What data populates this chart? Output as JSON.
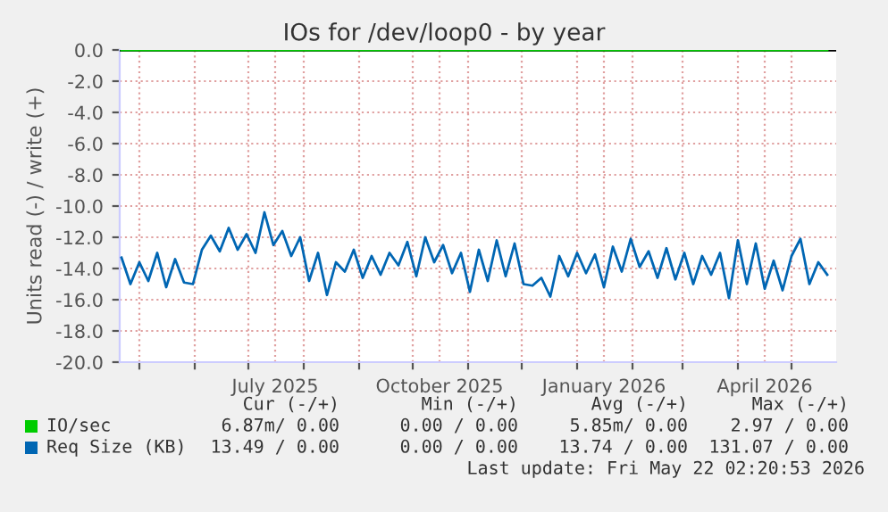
{
  "chart_data": {
    "type": "line",
    "title": "IOs for /dev/loop0 - by year",
    "ylabel": "Units read (-) / write (+)",
    "xlim": [
      "2025-04-20",
      "2026-05-26"
    ],
    "ylim": [
      -20,
      0
    ],
    "yticks": [
      {
        "value": -20,
        "label": "-20.0"
      },
      {
        "value": -18,
        "label": "-18.0"
      },
      {
        "value": -16,
        "label": "-16.0"
      },
      {
        "value": -14,
        "label": "-14.0"
      },
      {
        "value": -12,
        "label": "-12.0"
      },
      {
        "value": -10,
        "label": "-10.0"
      },
      {
        "value": -8,
        "label": "-8.0"
      },
      {
        "value": -6,
        "label": "-6.0"
      },
      {
        "value": -4,
        "label": "-4.0"
      },
      {
        "value": -2,
        "label": "-2.0"
      },
      {
        "value": 0,
        "label": "0.0"
      }
    ],
    "xticks": [
      {
        "value": "2025-05-01",
        "label": null
      },
      {
        "value": "2025-06-01",
        "label": null
      },
      {
        "value": "2025-07-01",
        "label": null
      },
      {
        "value": "2025-07-16",
        "label": "July 2025"
      },
      {
        "value": "2025-08-01",
        "label": null
      },
      {
        "value": "2025-09-01",
        "label": null
      },
      {
        "value": "2025-10-01",
        "label": null
      },
      {
        "value": "2025-10-16",
        "label": "October 2025"
      },
      {
        "value": "2025-11-01",
        "label": null
      },
      {
        "value": "2025-12-01",
        "label": null
      },
      {
        "value": "2026-01-01",
        "label": null
      },
      {
        "value": "2026-01-16",
        "label": "January 2026"
      },
      {
        "value": "2026-02-01",
        "label": null
      },
      {
        "value": "2026-03-01",
        "label": null
      },
      {
        "value": "2026-04-01",
        "label": null
      },
      {
        "value": "2026-04-16",
        "label": "April 2026"
      },
      {
        "value": "2026-05-01",
        "label": null
      }
    ],
    "grid": true,
    "legend": "bottom",
    "ref_lines": [
      {
        "axis": "y",
        "value": 0,
        "color": "#000000"
      }
    ],
    "series": [
      {
        "name": "IO/sec",
        "color": "#00cc00",
        "x": [
          "2025-04-21",
          "2026-05-21"
        ],
        "values": [
          0,
          0
        ]
      },
      {
        "name": "Req Size (KB)",
        "color": "#0066b3",
        "x": [
          "2025-04-21",
          "2025-04-26",
          "2025-05-01",
          "2025-05-06",
          "2025-05-11",
          "2025-05-16",
          "2025-05-21",
          "2025-05-26",
          "2025-05-31",
          "2025-06-05",
          "2025-06-10",
          "2025-06-15",
          "2025-06-20",
          "2025-06-25",
          "2025-06-30",
          "2025-07-05",
          "2025-07-10",
          "2025-07-15",
          "2025-07-20",
          "2025-07-25",
          "2025-07-30",
          "2025-08-04",
          "2025-08-09",
          "2025-08-14",
          "2025-08-19",
          "2025-08-24",
          "2025-08-29",
          "2025-09-03",
          "2025-09-08",
          "2025-09-13",
          "2025-09-18",
          "2025-09-23",
          "2025-09-28",
          "2025-10-03",
          "2025-10-08",
          "2025-10-13",
          "2025-10-18",
          "2025-10-23",
          "2025-10-28",
          "2025-11-02",
          "2025-11-07",
          "2025-11-12",
          "2025-11-17",
          "2025-11-22",
          "2025-11-27",
          "2025-12-02",
          "2025-12-07",
          "2025-12-12",
          "2025-12-17",
          "2025-12-22",
          "2025-12-27",
          "2026-01-01",
          "2026-01-06",
          "2026-01-11",
          "2026-01-16",
          "2026-01-21",
          "2026-01-26",
          "2026-01-31",
          "2026-02-05",
          "2026-02-10",
          "2026-02-15",
          "2026-02-20",
          "2026-02-25",
          "2026-03-02",
          "2026-03-07",
          "2026-03-12",
          "2026-03-17",
          "2026-03-22",
          "2026-03-27",
          "2026-04-01",
          "2026-04-06",
          "2026-04-11",
          "2026-04-16",
          "2026-04-21",
          "2026-04-26",
          "2026-05-01",
          "2026-05-06",
          "2026-05-11",
          "2026-05-16",
          "2026-05-21"
        ],
        "values": [
          -13.3,
          -15.0,
          -13.6,
          -14.8,
          -13.0,
          -15.2,
          -13.4,
          -14.9,
          -15.0,
          -12.8,
          -11.9,
          -12.9,
          -11.4,
          -12.8,
          -11.8,
          -13.0,
          -10.4,
          -12.5,
          -11.6,
          -13.2,
          -12.0,
          -14.8,
          -13.0,
          -15.7,
          -13.6,
          -14.2,
          -12.8,
          -14.6,
          -13.2,
          -14.4,
          -13.0,
          -13.8,
          -12.3,
          -14.5,
          -12.0,
          -13.6,
          -12.5,
          -14.3,
          -13.0,
          -15.5,
          -12.8,
          -14.8,
          -12.2,
          -14.5,
          -12.4,
          -15.0,
          -15.1,
          -14.6,
          -15.8,
          -13.2,
          -14.5,
          -13.0,
          -14.3,
          -13.1,
          -15.2,
          -12.6,
          -14.2,
          -12.1,
          -13.9,
          -12.9,
          -14.6,
          -12.7,
          -14.7,
          -13.0,
          -15.0,
          -13.2,
          -14.4,
          -13.0,
          -15.9,
          -12.2,
          -15.0,
          -12.4,
          -15.3,
          -13.5,
          -15.4,
          -13.2,
          -12.1,
          -15.0,
          -13.6,
          -14.4
        ]
      }
    ],
    "annotations": [
      "Cur (-/+)",
      "Min (-/+)",
      "Avg (-/+)",
      "Max (-/+)",
      "6.87m/ 0.00",
      "0.00 / 0.00",
      "5.85m/ 0.00",
      "2.97 / 0.00",
      "13.49 / 0.00",
      "0.00 / 0.00",
      "13.74 / 0.00",
      "131.07 / 0.00",
      "Last update: Fri May 22 02:20:53 2026"
    ]
  }
}
